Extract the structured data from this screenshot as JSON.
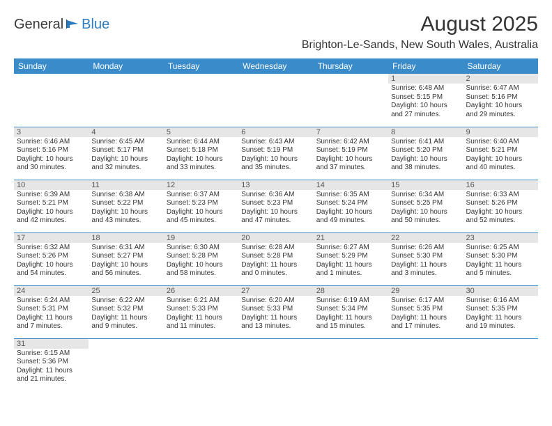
{
  "logo": {
    "text1": "General",
    "text2": "Blue"
  },
  "colors": {
    "header_bg": "#3a8bc9",
    "header_fg": "#ffffff",
    "daynum_bg": "#e6e6e6",
    "row_border": "#3a8bc9",
    "logo_blue": "#2a7bbf"
  },
  "title": "August 2025",
  "location": "Brighton-Le-Sands, New South Wales, Australia",
  "day_names": [
    "Sunday",
    "Monday",
    "Tuesday",
    "Wednesday",
    "Thursday",
    "Friday",
    "Saturday"
  ],
  "weeks": [
    [
      null,
      null,
      null,
      null,
      null,
      {
        "n": "1",
        "sr": "6:48 AM",
        "ss": "5:15 PM",
        "dh": "10",
        "dm": "27"
      },
      {
        "n": "2",
        "sr": "6:47 AM",
        "ss": "5:16 PM",
        "dh": "10",
        "dm": "29"
      }
    ],
    [
      {
        "n": "3",
        "sr": "6:46 AM",
        "ss": "5:16 PM",
        "dh": "10",
        "dm": "30"
      },
      {
        "n": "4",
        "sr": "6:45 AM",
        "ss": "5:17 PM",
        "dh": "10",
        "dm": "32"
      },
      {
        "n": "5",
        "sr": "6:44 AM",
        "ss": "5:18 PM",
        "dh": "10",
        "dm": "33"
      },
      {
        "n": "6",
        "sr": "6:43 AM",
        "ss": "5:19 PM",
        "dh": "10",
        "dm": "35"
      },
      {
        "n": "7",
        "sr": "6:42 AM",
        "ss": "5:19 PM",
        "dh": "10",
        "dm": "37"
      },
      {
        "n": "8",
        "sr": "6:41 AM",
        "ss": "5:20 PM",
        "dh": "10",
        "dm": "38"
      },
      {
        "n": "9",
        "sr": "6:40 AM",
        "ss": "5:21 PM",
        "dh": "10",
        "dm": "40"
      }
    ],
    [
      {
        "n": "10",
        "sr": "6:39 AM",
        "ss": "5:21 PM",
        "dh": "10",
        "dm": "42"
      },
      {
        "n": "11",
        "sr": "6:38 AM",
        "ss": "5:22 PM",
        "dh": "10",
        "dm": "43"
      },
      {
        "n": "12",
        "sr": "6:37 AM",
        "ss": "5:23 PM",
        "dh": "10",
        "dm": "45"
      },
      {
        "n": "13",
        "sr": "6:36 AM",
        "ss": "5:23 PM",
        "dh": "10",
        "dm": "47"
      },
      {
        "n": "14",
        "sr": "6:35 AM",
        "ss": "5:24 PM",
        "dh": "10",
        "dm": "49"
      },
      {
        "n": "15",
        "sr": "6:34 AM",
        "ss": "5:25 PM",
        "dh": "10",
        "dm": "50"
      },
      {
        "n": "16",
        "sr": "6:33 AM",
        "ss": "5:26 PM",
        "dh": "10",
        "dm": "52"
      }
    ],
    [
      {
        "n": "17",
        "sr": "6:32 AM",
        "ss": "5:26 PM",
        "dh": "10",
        "dm": "54"
      },
      {
        "n": "18",
        "sr": "6:31 AM",
        "ss": "5:27 PM",
        "dh": "10",
        "dm": "56"
      },
      {
        "n": "19",
        "sr": "6:30 AM",
        "ss": "5:28 PM",
        "dh": "10",
        "dm": "58"
      },
      {
        "n": "20",
        "sr": "6:28 AM",
        "ss": "5:28 PM",
        "dh": "11",
        "dm": "0"
      },
      {
        "n": "21",
        "sr": "6:27 AM",
        "ss": "5:29 PM",
        "dh": "11",
        "dm": "1"
      },
      {
        "n": "22",
        "sr": "6:26 AM",
        "ss": "5:30 PM",
        "dh": "11",
        "dm": "3"
      },
      {
        "n": "23",
        "sr": "6:25 AM",
        "ss": "5:30 PM",
        "dh": "11",
        "dm": "5"
      }
    ],
    [
      {
        "n": "24",
        "sr": "6:24 AM",
        "ss": "5:31 PM",
        "dh": "11",
        "dm": "7"
      },
      {
        "n": "25",
        "sr": "6:22 AM",
        "ss": "5:32 PM",
        "dh": "11",
        "dm": "9"
      },
      {
        "n": "26",
        "sr": "6:21 AM",
        "ss": "5:33 PM",
        "dh": "11",
        "dm": "11"
      },
      {
        "n": "27",
        "sr": "6:20 AM",
        "ss": "5:33 PM",
        "dh": "11",
        "dm": "13"
      },
      {
        "n": "28",
        "sr": "6:19 AM",
        "ss": "5:34 PM",
        "dh": "11",
        "dm": "15"
      },
      {
        "n": "29",
        "sr": "6:17 AM",
        "ss": "5:35 PM",
        "dh": "11",
        "dm": "17"
      },
      {
        "n": "30",
        "sr": "6:16 AM",
        "ss": "5:35 PM",
        "dh": "11",
        "dm": "19"
      }
    ],
    [
      {
        "n": "31",
        "sr": "6:15 AM",
        "ss": "5:36 PM",
        "dh": "11",
        "dm": "21"
      },
      null,
      null,
      null,
      null,
      null,
      null
    ]
  ],
  "labels": {
    "sunrise": "Sunrise: ",
    "sunset": "Sunset: ",
    "daylight": "Daylight: ",
    "hours": " hours",
    "and": "and ",
    "minutes": " minutes."
  }
}
